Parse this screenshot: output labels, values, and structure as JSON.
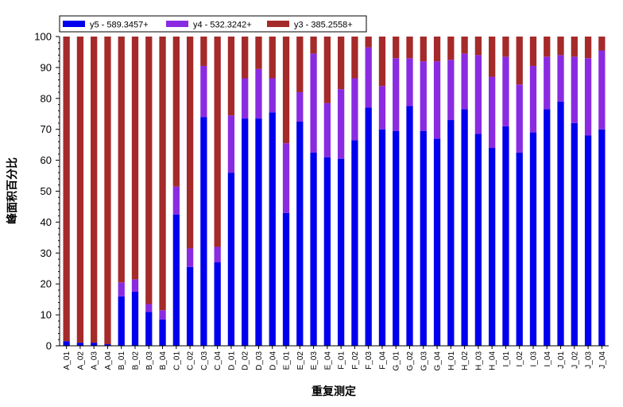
{
  "chart_data": {
    "type": "bar",
    "stacked": true,
    "xlabel": "重复测定",
    "ylabel": "峰面积百分比",
    "ylim": [
      0,
      100
    ],
    "yticks": [
      0,
      10,
      20,
      30,
      40,
      50,
      60,
      70,
      80,
      90,
      100
    ],
    "legend_position": "top-left",
    "categories": [
      "A_01",
      "A_02",
      "A_03",
      "A_04",
      "B_01",
      "B_02",
      "B_03",
      "B_04",
      "C_01",
      "C_02",
      "C_03",
      "C_04",
      "D_01",
      "D_02",
      "D_03",
      "D_04",
      "E_01",
      "E_02",
      "E_03",
      "E_04",
      "F_01",
      "F_02",
      "F_03",
      "F_04",
      "G_01",
      "G_02",
      "G_03",
      "G_04",
      "H_01",
      "H_02",
      "H_03",
      "H_04",
      "I_01",
      "I_02",
      "I_03",
      "I_04",
      "J_01",
      "J_02",
      "J_03",
      "J_04"
    ],
    "series": [
      {
        "name": "y5 - 589.3457+",
        "color": "#0000ee",
        "values": [
          1.5,
          1,
          1,
          0.5,
          16,
          17.5,
          11,
          8.5,
          42.5,
          25.5,
          74,
          27,
          56,
          73.5,
          73.5,
          75.5,
          43,
          72.5,
          62.5,
          61,
          60.5,
          66.5,
          77,
          70,
          69.5,
          77.5,
          69.5,
          67,
          73,
          76.5,
          68.5,
          64,
          71,
          62.5,
          69,
          76.5,
          79,
          72,
          68,
          70
        ]
      },
      {
        "name": "y4 - 532.3242+",
        "color": "#8a2be2",
        "values": [
          0,
          0,
          0,
          0,
          4.5,
          4,
          2.5,
          3,
          9,
          6,
          16.5,
          5,
          18.5,
          13,
          16,
          11,
          22.5,
          9.5,
          32,
          17.5,
          22.5,
          20,
          19.5,
          14,
          23.5,
          15.5,
          22.5,
          25,
          19.5,
          18,
          25.5,
          23,
          22.5,
          22,
          21.5,
          17,
          15,
          21.5,
          25,
          25.5
        ]
      },
      {
        "name": "y3 - 385.2558+",
        "color": "#a52a2a",
        "values": [
          98.5,
          99,
          99,
          99.5,
          79.5,
          78.5,
          86.5,
          88.5,
          48.5,
          68.5,
          9.5,
          68,
          25.5,
          13.5,
          10.5,
          13.5,
          34.5,
          18,
          5.5,
          21.5,
          17,
          13.5,
          3.5,
          16,
          7,
          7,
          8,
          8,
          7.5,
          5.5,
          6,
          13,
          6.5,
          15.5,
          9.5,
          6.5,
          6,
          6.5,
          7,
          4.5
        ]
      }
    ]
  }
}
